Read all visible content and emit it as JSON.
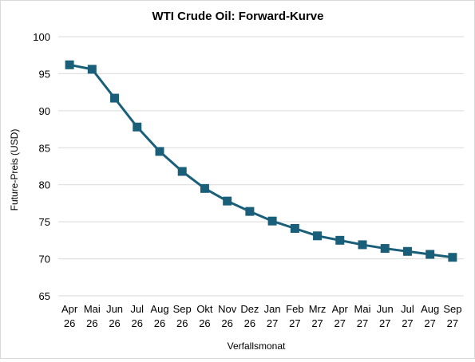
{
  "chart_data": {
    "type": "line",
    "title": "WTI Crude Oil: Forward-Kurve",
    "xlabel": "Verfallsmonat",
    "ylabel": "Future-Preis (USD)",
    "ylim": [
      65,
      100
    ],
    "yticks": [
      65,
      70,
      75,
      80,
      85,
      90,
      95,
      100
    ],
    "grid": true,
    "legend": "none",
    "categories": [
      [
        "Apr",
        "26"
      ],
      [
        "Mai",
        "26"
      ],
      [
        "Jun",
        "26"
      ],
      [
        "Jul",
        "26"
      ],
      [
        "Aug",
        "26"
      ],
      [
        "Sep",
        "26"
      ],
      [
        "Okt",
        "26"
      ],
      [
        "Nov",
        "26"
      ],
      [
        "Dez",
        "26"
      ],
      [
        "Jan",
        "27"
      ],
      [
        "Feb",
        "27"
      ],
      [
        "Mrz",
        "27"
      ],
      [
        "Apr",
        "27"
      ],
      [
        "Mai",
        "27"
      ],
      [
        "Jun",
        "27"
      ],
      [
        "Jul",
        "27"
      ],
      [
        "Aug",
        "27"
      ],
      [
        "Sep",
        "27"
      ]
    ],
    "series": [
      {
        "values": [
          96.2,
          95.6,
          91.7,
          87.8,
          84.5,
          81.8,
          79.5,
          77.8,
          76.4,
          75.1,
          74.1,
          73.1,
          72.5,
          71.9,
          71.4,
          71.0,
          70.6,
          70.2
        ],
        "color": "#1a5f7a",
        "marker": "square"
      }
    ]
  }
}
